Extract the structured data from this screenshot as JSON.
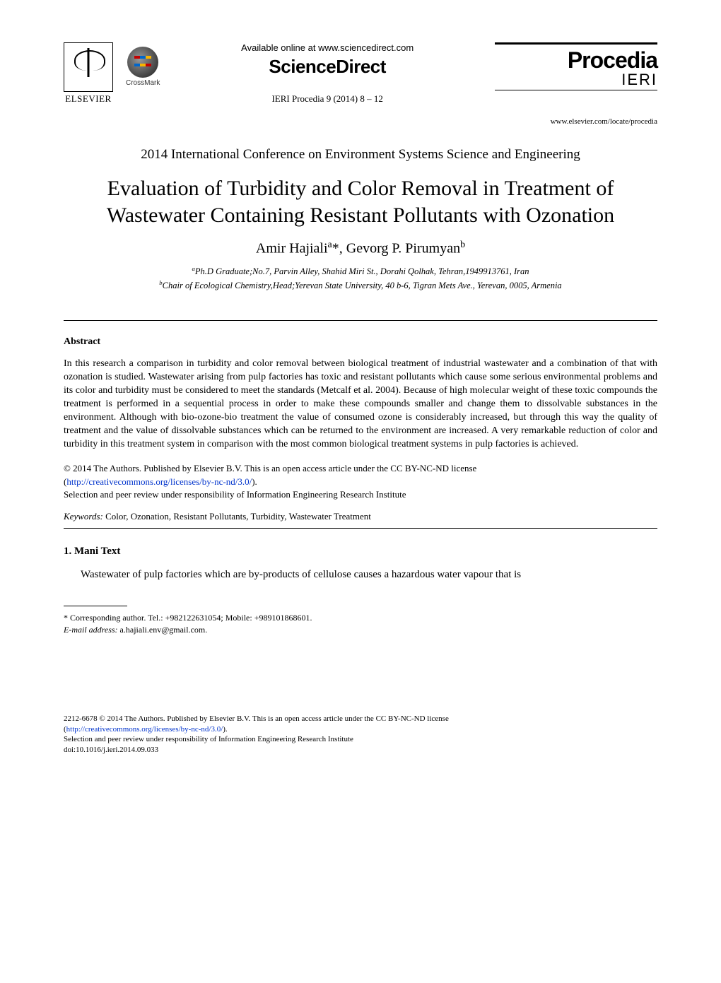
{
  "header": {
    "available_online": "Available online at www.sciencedirect.com",
    "sciencedirect": "ScienceDirect",
    "journal_ref": "IERI Procedia 9 (2014) 8 – 12",
    "procedia_title": "Procedia",
    "procedia_sub": "IERI",
    "locate_url": "www.elsevier.com/locate/procedia",
    "elsevier_label": "ELSEVIER",
    "crossmark_label": "CrossMark"
  },
  "conference": "2014 International Conference on Environment Systems Science and Engineering",
  "title": "Evaluation of Turbidity and Color Removal in Treatment of Wastewater Containing Resistant Pollutants with Ozonation",
  "authors_html": "Amir Hajiali<sup>a</sup>*, Gevorg P. Pirumyan<sup>b</sup>",
  "affiliations": {
    "a": "Ph.D Graduate;No.7, Parvin Alley, Shahid Miri St., Dorahi Qolhak, Tehran,1949913761, Iran",
    "b": "Chair of Ecological Chemistry,Head;Yerevan State University, 40 b-6,  Tigran Mets Ave., Yerevan, 0005, Armenia"
  },
  "abstract": {
    "heading": "Abstract",
    "body": "In this research a comparison in turbidity and color removal between biological treatment of industrial wastewater and a combination of that with ozonation is studied. Wastewater arising from pulp factories has toxic and resistant pollutants which cause some serious environmental problems and its color and turbidity must be considered to meet the standards (Metcalf et al. 2004). Because of high molecular weight of these toxic compounds the treatment is performed in a sequential process in order to make these compounds smaller and change them to dissolvable substances in the environment. Although with bio-ozone-bio treatment the value of consumed ozone is considerably increased, but through this way the quality of treatment and the value of dissolvable substances which can be returned to the environment are increased. A very remarkable reduction of color and turbidity in this treatment system in comparison with the most common biological treatment systems in pulp factories is achieved."
  },
  "license": {
    "line1": "© 2014 The Authors. Published by Elsevier B.V. This is an open access article under the CC BY-NC-ND license",
    "link_text": "http://creativecommons.org/licenses/by-nc-nd/3.0/",
    "line2": "Selection and peer review under responsibility of Information Engineering Research Institute"
  },
  "keywords": {
    "label": "Keywords:",
    "text": " Color, Ozonation, Resistant Pollutants, Turbidity, Wastewater Treatment"
  },
  "section1": {
    "heading": "1. Mani Text",
    "body": "Wastewater of pulp factories which are by-products of cellulose causes a hazardous water vapour that is"
  },
  "footnote": {
    "corr": "* Corresponding author. Tel.: +982122631054; Mobile: +989101868601.",
    "email_label": "E-mail address:",
    "email": " a.hajiali.env@gmail.com."
  },
  "footer": {
    "issn_line": "2212-6678 © 2014 The Authors. Published by Elsevier B.V. This is an open access article under the CC BY-NC-ND license",
    "link_text": "http://creativecommons.org/licenses/by-nc-nd/3.0/",
    "sel_line": "Selection and peer review under responsibility of Information Engineering Research Institute",
    "doi": "doi:10.1016/j.ieri.2014.09.033"
  },
  "colors": {
    "text": "#000000",
    "link": "#0033cc",
    "background": "#ffffff"
  },
  "typography": {
    "body_font": "Times New Roman",
    "title_fontsize_pt": 22,
    "abstract_fontsize_pt": 10.5,
    "footnote_fontsize_pt": 9
  }
}
